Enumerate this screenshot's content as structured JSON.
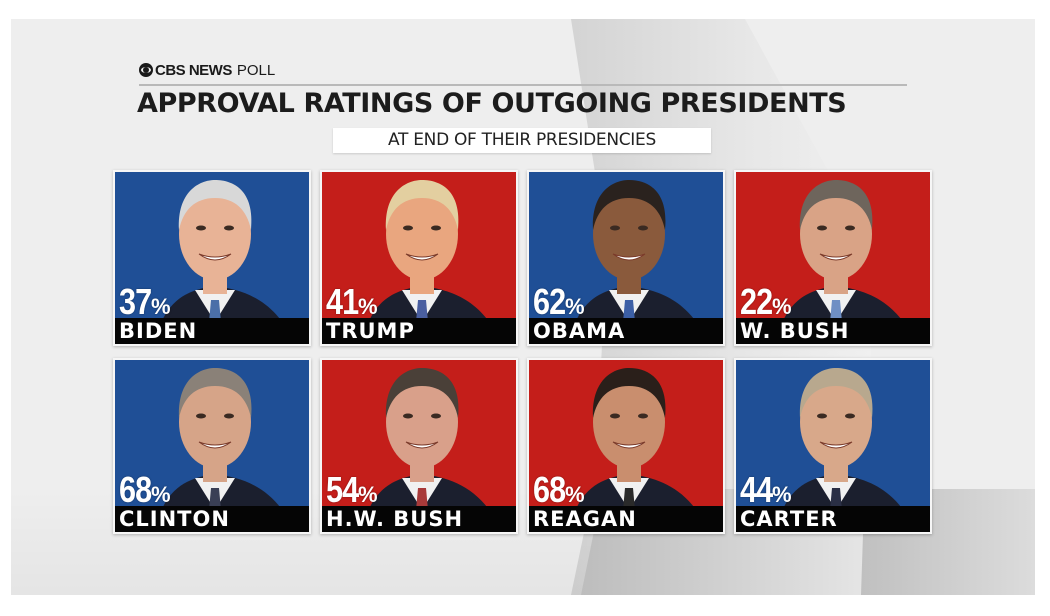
{
  "header": {
    "brand": "CBS NEWS",
    "brand_suffix": "POLL",
    "title": "APPROVAL RATINGS OF OUTGOING PRESIDENTS",
    "subtitle": "AT END OF THEIR PRESIDENCIES"
  },
  "colors": {
    "democrat_blue": "#1f4f96",
    "republican_red": "#c41e1a",
    "name_bar": "#050505"
  },
  "chart_data": {
    "type": "table",
    "title": "APPROVAL RATINGS OF OUTGOING PRESIDENTS",
    "subtitle": "AT END OF THEIR PRESIDENCIES",
    "unit": "%",
    "items": [
      {
        "name": "BIDEN",
        "value": 37,
        "party_color": "#1f4f96",
        "hair": "#d8d8d8",
        "skin": "#e8b396",
        "tie": "#4b6fa8"
      },
      {
        "name": "TRUMP",
        "value": 41,
        "party_color": "#c41e1a",
        "hair": "#e3cfa0",
        "skin": "#e9a67f",
        "tie": "#4a5fa0"
      },
      {
        "name": "OBAMA",
        "value": 62,
        "party_color": "#1f4f96",
        "hair": "#2a221e",
        "skin": "#8a5a3c",
        "tie": "#3c5fa6"
      },
      {
        "name": "W. BUSH",
        "value": 22,
        "party_color": "#c41e1a",
        "hair": "#6e655c",
        "skin": "#d9a386",
        "tie": "#6f8fc4"
      },
      {
        "name": "CLINTON",
        "value": 68,
        "party_color": "#1f4f96",
        "hair": "#8a8178",
        "skin": "#d6a488",
        "tie": "#3a3f55"
      },
      {
        "name": "H.W. BUSH",
        "value": 54,
        "party_color": "#c41e1a",
        "hair": "#4a4038",
        "skin": "#d9a08a",
        "tie": "#a83a3a"
      },
      {
        "name": "REAGAN",
        "value": 68,
        "party_color": "#c41e1a",
        "hair": "#2a1f1a",
        "skin": "#c98e6e",
        "tie": "#2a2a2a"
      },
      {
        "name": "CARTER",
        "value": 44,
        "party_color": "#1f4f96",
        "hair": "#b8a88e",
        "skin": "#d8a88a",
        "tie": "#2a2f45"
      }
    ]
  }
}
